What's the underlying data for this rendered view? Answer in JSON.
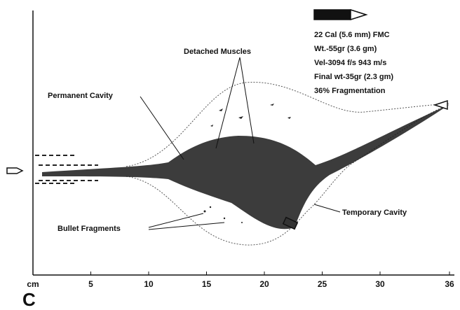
{
  "labels": {
    "detached_muscles": "Detached Muscles",
    "permanent_cavity": "Permanent Cavity",
    "temporary_cavity": "Temporary Cavity",
    "bullet_fragments": "Bullet Fragments"
  },
  "specs": [
    "22 Cal (5.6 mm) FMC",
    "Wt.-55gr (3.6 gm)",
    "Vel-3094 f/s 943 m/s",
    "Final wt-35gr (2.3 gm)",
    "36% Fragmentation"
  ],
  "axis": {
    "unit": "cm",
    "ticks": [
      5,
      10,
      15,
      20,
      25,
      30,
      36
    ]
  },
  "panel_label": "C"
}
